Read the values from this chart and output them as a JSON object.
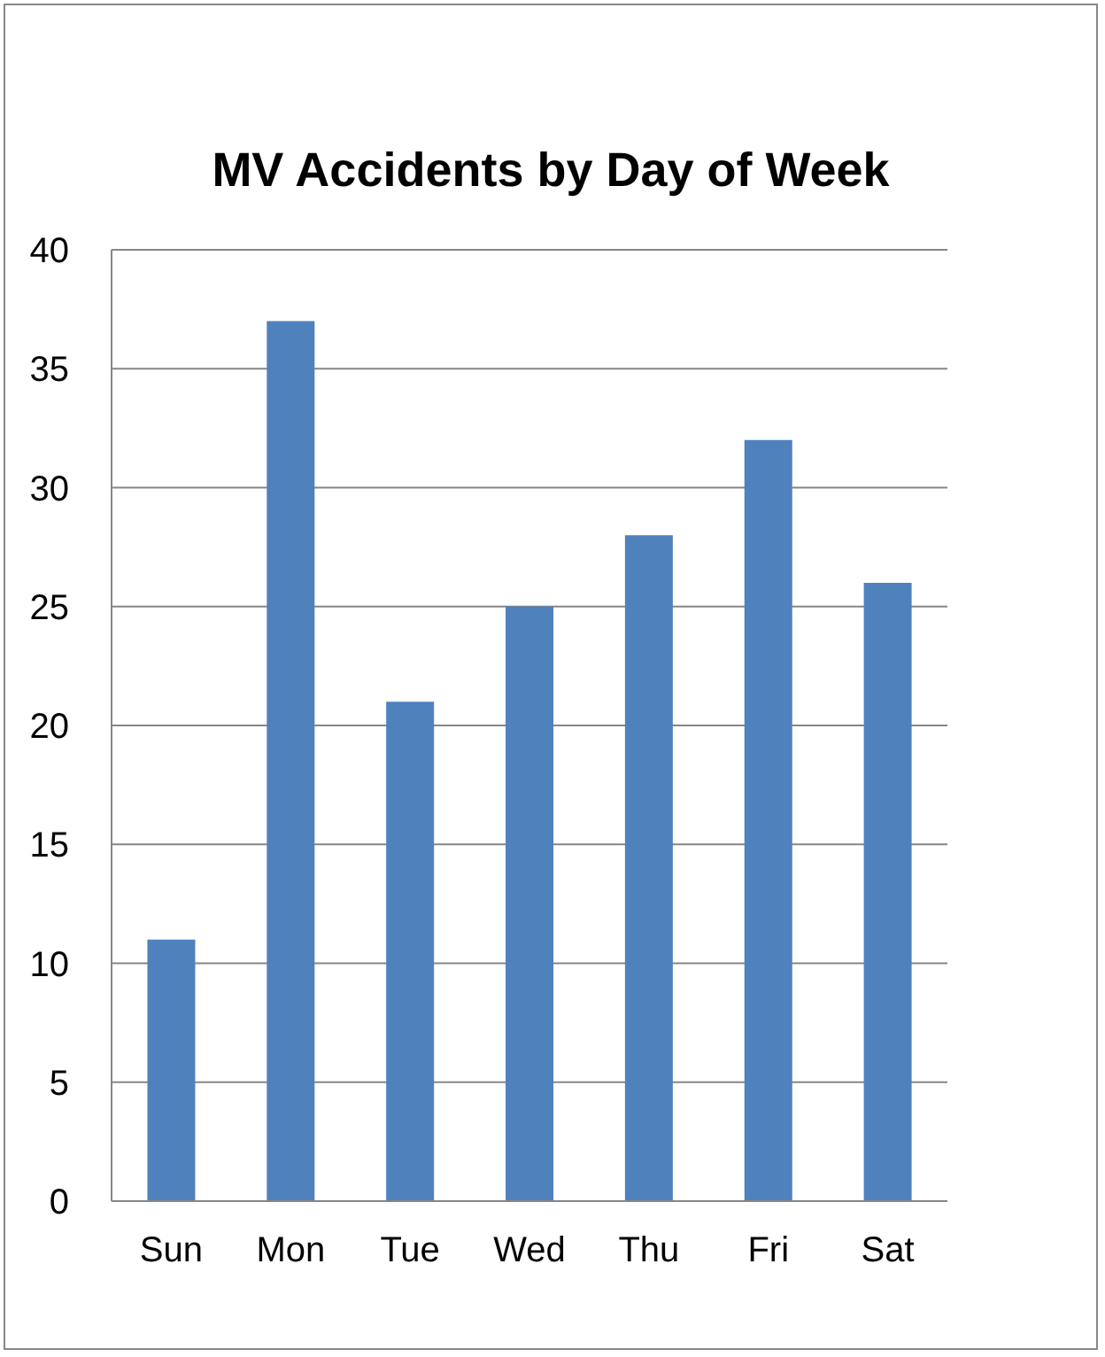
{
  "chart_data": {
    "type": "bar",
    "title": "MV Accidents by Day of Week",
    "categories": [
      "Sun",
      "Mon",
      "Tue",
      "Wed",
      "Thu",
      "Fri",
      "Sat"
    ],
    "values": [
      11,
      37,
      21,
      25,
      28,
      32,
      26
    ],
    "color": "#4f81bd",
    "ylim": [
      0,
      40
    ],
    "yticks": [
      0,
      5,
      10,
      15,
      20,
      25,
      30,
      35,
      40
    ],
    "grid": "y"
  }
}
